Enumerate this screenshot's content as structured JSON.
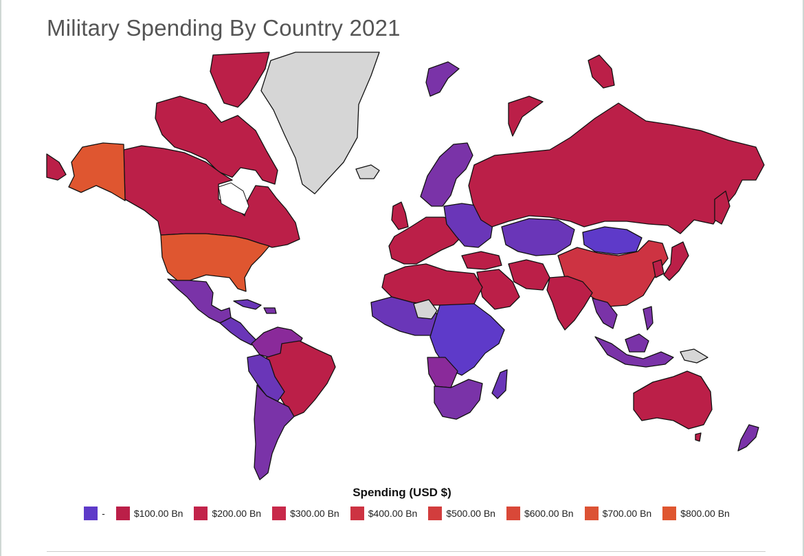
{
  "title": "Military Spending By Country 2021",
  "legend": {
    "title": "Spending (USD $)",
    "items": [
      {
        "label": "-",
        "color": "#5e3ac9"
      },
      {
        "label": "$100.00 Bn",
        "color": "#bb1f48"
      },
      {
        "label": "$200.00 Bn",
        "color": "#c2234a"
      },
      {
        "label": "$300.00 Bn",
        "color": "#c8294a"
      },
      {
        "label": "$400.00 Bn",
        "color": "#cd3342"
      },
      {
        "label": "$500.00 Bn",
        "color": "#d23d3d"
      },
      {
        "label": "$600.00 Bn",
        "color": "#d94838"
      },
      {
        "label": "$700.00 Bn",
        "color": "#dc5234"
      },
      {
        "label": "$800.00 Bn",
        "color": "#df5630"
      }
    ]
  },
  "colors": {
    "low": "#6a36b8",
    "mid": "#bb1f48",
    "high": "#df5630",
    "no_data": "#d6d6d6",
    "border": "#111111"
  }
}
